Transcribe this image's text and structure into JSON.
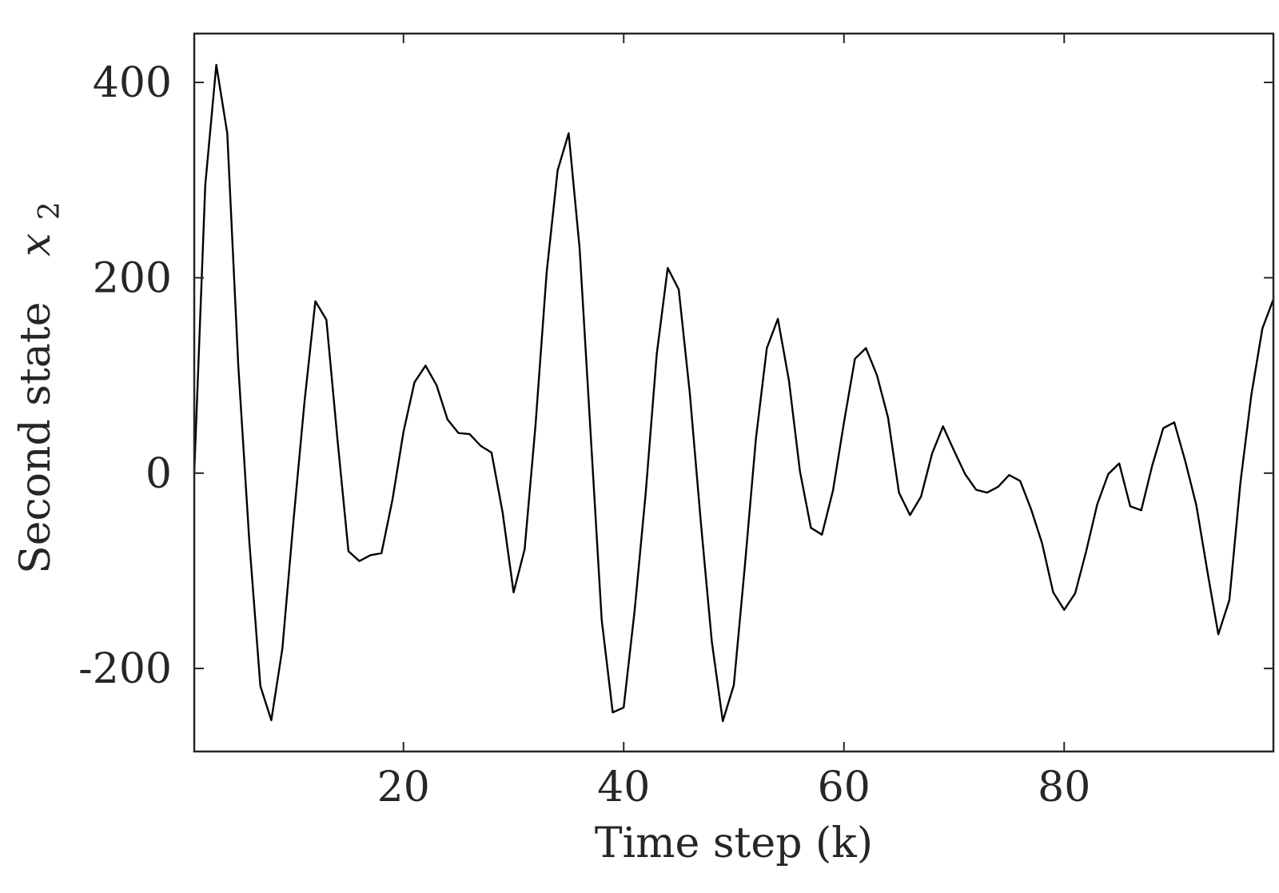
{
  "chart_data": {
    "type": "line",
    "xlabel": "Time step (k)",
    "ylabel": "Second state",
    "ylabel_math": {
      "base": "x",
      "sub": "2"
    },
    "xlim": [
      1,
      99
    ],
    "ylim": [
      -285,
      450
    ],
    "xticks": [
      20,
      40,
      60,
      80
    ],
    "xtick_labels": [
      "20",
      "40",
      "60",
      "80"
    ],
    "yticks": [
      -200,
      0,
      200,
      400
    ],
    "ytick_labels": [
      "-200",
      "0",
      "200",
      "400"
    ],
    "grid": false,
    "box": true,
    "series": [
      {
        "color": "#000000",
        "x": [
          1,
          2,
          3,
          4,
          5,
          6,
          7,
          8,
          9,
          10,
          11,
          12,
          13,
          14,
          15,
          16,
          17,
          18,
          19,
          20,
          21,
          22,
          23,
          24,
          25,
          26,
          27,
          28,
          29,
          30,
          31,
          32,
          33,
          34,
          35,
          36,
          37,
          38,
          39,
          40,
          41,
          42,
          43,
          44,
          45,
          46,
          47,
          48,
          49,
          50,
          51,
          52,
          53,
          54,
          55,
          56,
          57,
          58,
          59,
          60,
          61,
          62,
          63,
          64,
          65,
          66,
          67,
          68,
          69,
          70,
          71,
          72,
          73,
          74,
          75,
          76,
          77,
          78,
          79,
          80,
          81,
          82,
          83,
          84,
          85,
          86,
          87,
          88,
          89,
          90,
          91,
          92,
          93,
          94,
          95,
          96,
          97,
          98,
          99
        ],
        "y": [
          0,
          295,
          418,
          348,
          110,
          -70,
          -218,
          -253,
          -180,
          -50,
          72,
          176,
          157,
          35,
          -80,
          -90,
          -84,
          -82,
          -27,
          42,
          93,
          110,
          90,
          55,
          41,
          40,
          28,
          21,
          -40,
          -122,
          -78,
          50,
          205,
          310,
          348,
          230,
          40,
          -150,
          -245,
          -240,
          -140,
          -20,
          122,
          210,
          188,
          82,
          -50,
          -172,
          -254,
          -217,
          -95,
          35,
          128,
          158,
          95,
          2,
          -56,
          -63,
          -18,
          52,
          117,
          128,
          100,
          57,
          -20,
          -43,
          -24,
          20,
          48,
          23,
          -1,
          -17,
          -20,
          -14,
          -2,
          -8,
          -37,
          -72,
          -122,
          -140,
          -123,
          -80,
          -32,
          -1,
          10,
          -34,
          -38,
          8,
          46,
          52,
          12,
          -33,
          -100,
          -165,
          -130,
          -10,
          80,
          148,
          178
        ]
      }
    ]
  }
}
